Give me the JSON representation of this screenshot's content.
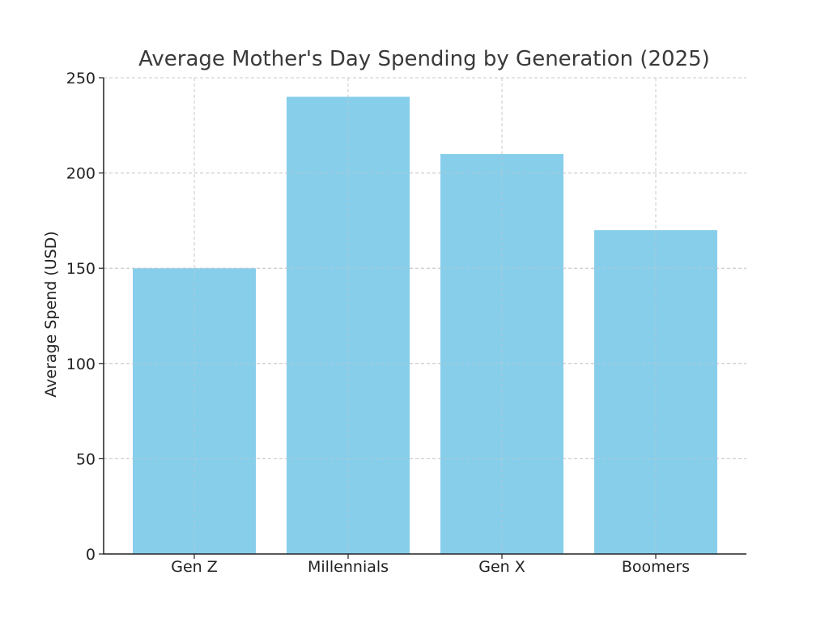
{
  "chart_data": {
    "type": "bar",
    "title": "Average Mother's Day Spending by Generation (2025)",
    "xlabel": "",
    "ylabel": "Average Spend (USD)",
    "categories": [
      "Gen Z",
      "Millennials",
      "Gen X",
      "Boomers"
    ],
    "values": [
      150,
      240,
      210,
      170
    ],
    "ylim": [
      0,
      250
    ],
    "yticks": [
      0,
      50,
      100,
      150,
      200,
      250
    ],
    "grid": true,
    "bar_color": "#87ceeb"
  }
}
